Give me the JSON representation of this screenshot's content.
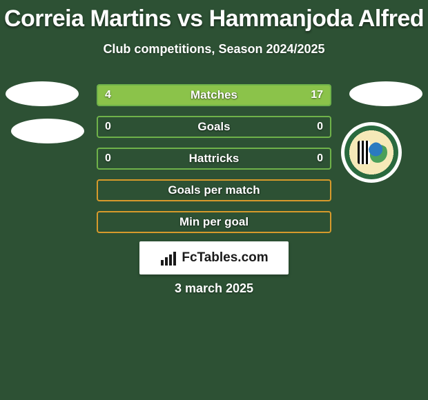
{
  "title": "Correia Martins vs Hammanjoda Alfred",
  "subtitle": "Club competitions, Season 2024/2025",
  "date": "3 march 2025",
  "brand": "FcTables.com",
  "colors": {
    "background": "#2d5134",
    "text": "#ffffff",
    "border_green": "#6fb24a",
    "fill_green": "#8bc34a",
    "border_orange": "#d79a2b",
    "fill_orange": "#e6a93f",
    "brand_bg": "#ffffff",
    "brand_text": "#1a1a1a"
  },
  "bars": [
    {
      "label": "Matches",
      "left": "4",
      "right": "17",
      "left_pct": 19,
      "right_pct": 81,
      "border": "#6fb24a",
      "fill": "#8bc34a",
      "show_vals": true
    },
    {
      "label": "Goals",
      "left": "0",
      "right": "0",
      "left_pct": 0,
      "right_pct": 0,
      "border": "#6fb24a",
      "fill": "#8bc34a",
      "show_vals": true
    },
    {
      "label": "Hattricks",
      "left": "0",
      "right": "0",
      "left_pct": 0,
      "right_pct": 0,
      "border": "#6fb24a",
      "fill": "#8bc34a",
      "show_vals": true
    },
    {
      "label": "Goals per match",
      "left": "",
      "right": "",
      "left_pct": 0,
      "right_pct": 0,
      "border": "#d79a2b",
      "fill": "#e6a93f",
      "show_vals": false
    },
    {
      "label": "Min per goal",
      "left": "",
      "right": "",
      "left_pct": 0,
      "right_pct": 0,
      "border": "#d79a2b",
      "fill": "#e6a93f",
      "show_vals": false
    }
  ]
}
